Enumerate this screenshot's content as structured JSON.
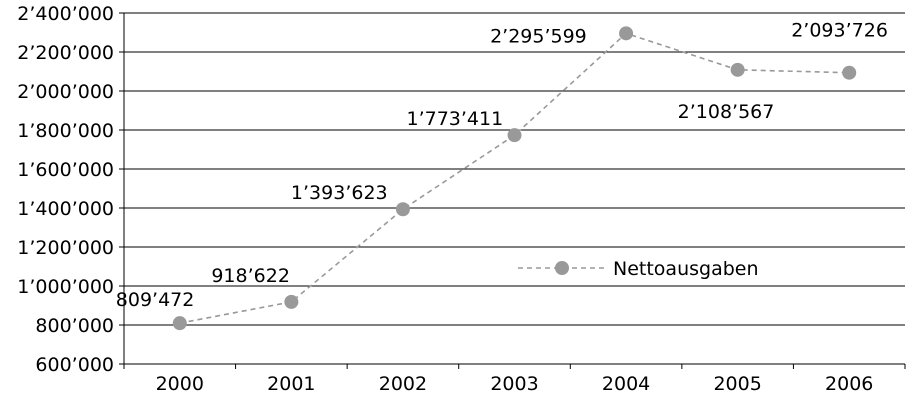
{
  "chart_data": {
    "type": "line",
    "title": "",
    "xlabel": "",
    "ylabel": "",
    "categories": [
      "2000",
      "2001",
      "2002",
      "2003",
      "2004",
      "2005",
      "2006"
    ],
    "series": [
      {
        "name": "Nettoausgaben",
        "values": [
          809472,
          918622,
          1393623,
          1773411,
          2295599,
          2108567,
          2093726
        ],
        "color": "#999999"
      }
    ],
    "data_labels": [
      "809’472",
      "918’622",
      "1’393’623",
      "1’773’411",
      "2’295’599",
      "2’108’567",
      "2’093’726"
    ],
    "ylim": [
      600000,
      2400000
    ],
    "yticks": [
      600000,
      800000,
      1000000,
      1200000,
      1400000,
      1600000,
      1800000,
      2000000,
      2200000,
      2400000
    ],
    "ytick_labels": [
      "600’000",
      "800’000",
      "1’000’000",
      "1’200’000",
      "1’400’000",
      "1’600’000",
      "1’800’000",
      "2’000’000",
      "2’200’000",
      "2’400’000"
    ],
    "grid": true,
    "legend": {
      "placement": "center-right",
      "entries": [
        "Nettoausgaben"
      ]
    }
  }
}
